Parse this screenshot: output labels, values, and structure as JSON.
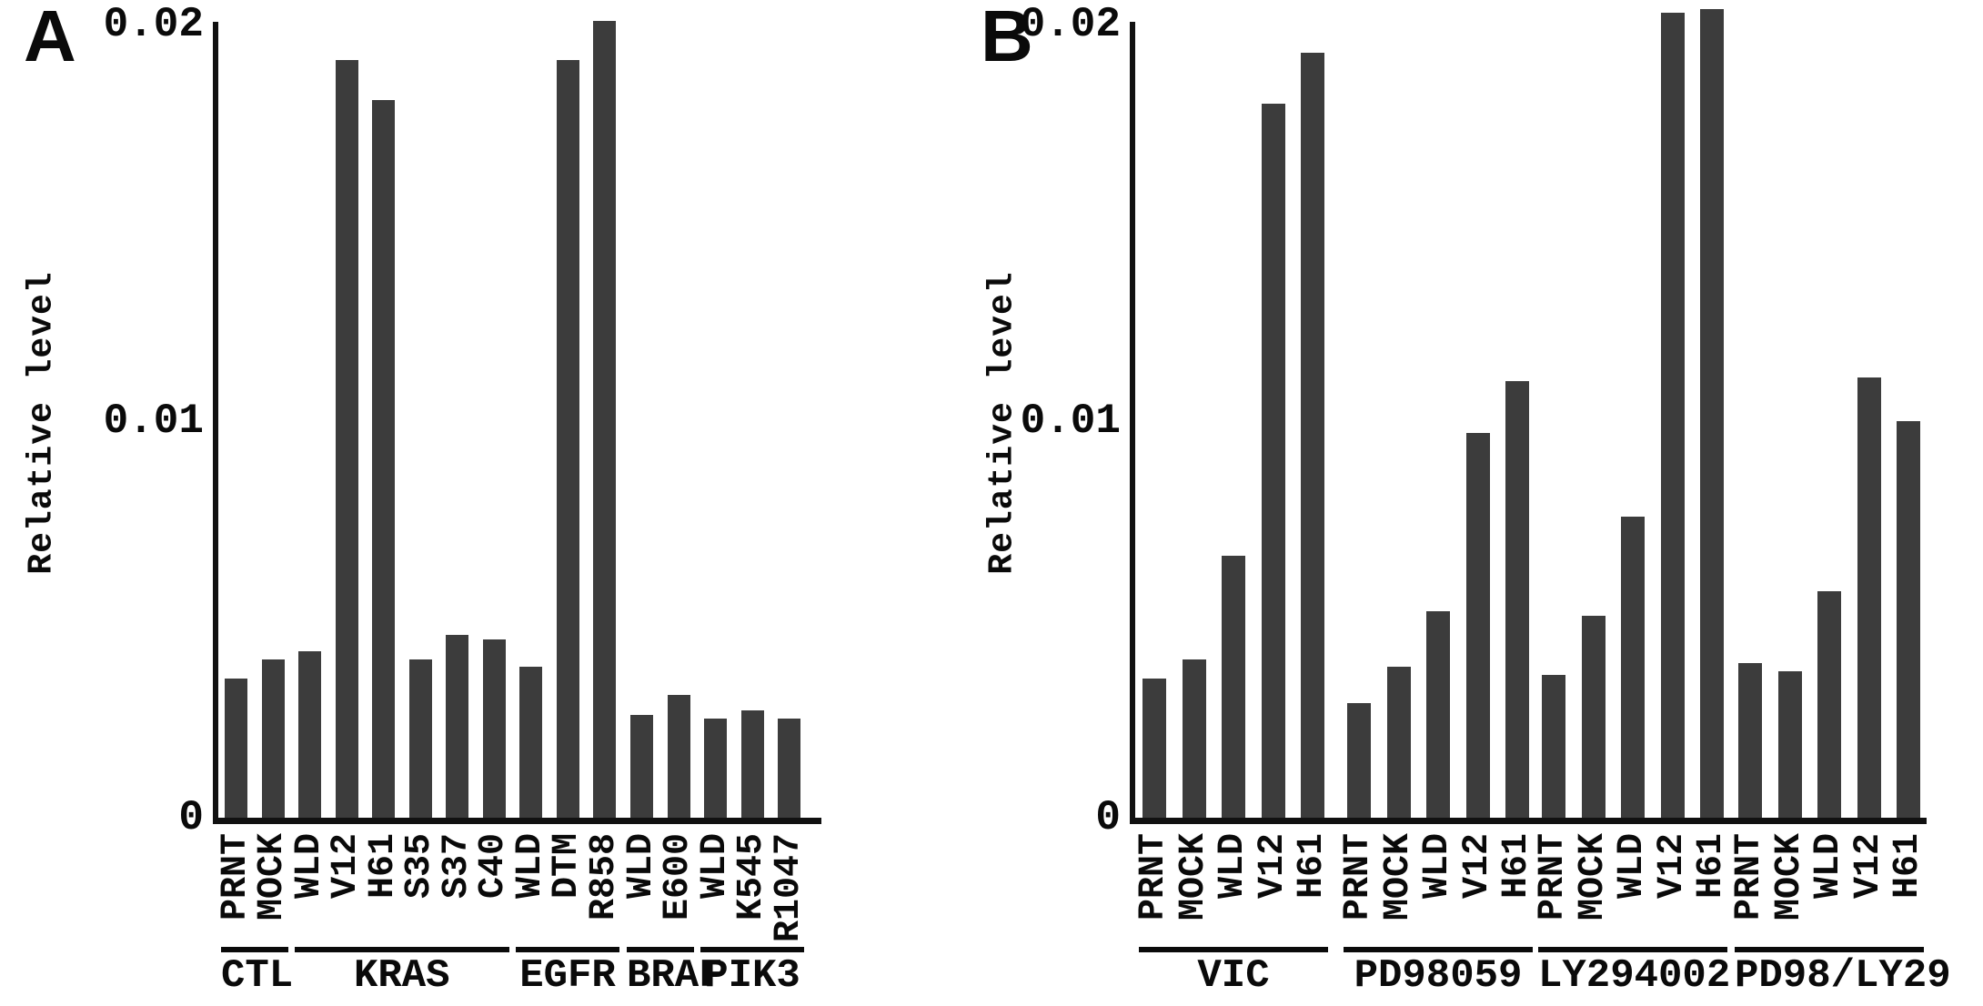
{
  "figure": {
    "background": "#ffffff",
    "bar_color": "#3c3c3c",
    "axis_color": "#111111"
  },
  "chart_data": [
    {
      "type": "bar",
      "panel": "A",
      "title": "",
      "xlabel": "",
      "ylabel": "Relative level",
      "ylim": [
        0,
        0.02
      ],
      "grid": false,
      "legend": "none",
      "yticks": [
        {
          "value": 0,
          "label": "0"
        },
        {
          "value": 0.01,
          "label": "0.01"
        },
        {
          "value": 0.02,
          "label": "0.02"
        }
      ],
      "groups": [
        {
          "label": "CTL",
          "categories": [
            "PRNT",
            "MOCK"
          ],
          "values": [
            0.0035,
            0.004
          ]
        },
        {
          "label": "KRAS",
          "categories": [
            "WLD",
            "V12",
            "H61",
            "S35",
            "S37",
            "C40"
          ],
          "values": [
            0.0042,
            0.0191,
            0.0181,
            0.004,
            0.0046,
            0.0045
          ]
        },
        {
          "label": "EGFR",
          "categories": [
            "WLD",
            "DTM",
            "R858"
          ],
          "values": [
            0.0038,
            0.0191,
            0.0201
          ]
        },
        {
          "label": "BRAF",
          "categories": [
            "WLD",
            "E600"
          ],
          "values": [
            0.0026,
            0.0031
          ]
        },
        {
          "label": "PIK3",
          "categories": [
            "WLD",
            "K545",
            "R1047"
          ],
          "values": [
            0.0025,
            0.0027,
            0.0025
          ]
        }
      ]
    },
    {
      "type": "bar",
      "panel": "B",
      "title": "",
      "xlabel": "",
      "ylabel": "Relative level",
      "ylim": [
        0,
        0.02
      ],
      "grid": false,
      "legend": "none",
      "yticks": [
        {
          "value": 0,
          "label": "0"
        },
        {
          "value": 0.01,
          "label": "0.01"
        },
        {
          "value": 0.02,
          "label": "0.02"
        }
      ],
      "groups": [
        {
          "label": "VIC",
          "categories": [
            "PRNT",
            "MOCK",
            "WLD",
            "V12",
            "H61"
          ],
          "values": [
            0.0035,
            0.004,
            0.0066,
            0.018,
            0.0193
          ]
        },
        {
          "label": "PD98059",
          "categories": [
            "PRNT",
            "MOCK",
            "WLD",
            "V12",
            "H61"
          ],
          "values": [
            0.0029,
            0.0038,
            0.0052,
            0.0097,
            0.011
          ]
        },
        {
          "label": "LY294002",
          "categories": [
            "PRNT",
            "MOCK",
            "WLD",
            "V12",
            "H61"
          ],
          "values": [
            0.0036,
            0.0051,
            0.0076,
            0.0203,
            0.0204
          ]
        },
        {
          "label": "PD98/LY29",
          "categories": [
            "PRNT",
            "MOCK",
            "WLD",
            "V12",
            "H61"
          ],
          "values": [
            0.0039,
            0.0037,
            0.0057,
            0.0111,
            0.01
          ]
        }
      ]
    }
  ]
}
